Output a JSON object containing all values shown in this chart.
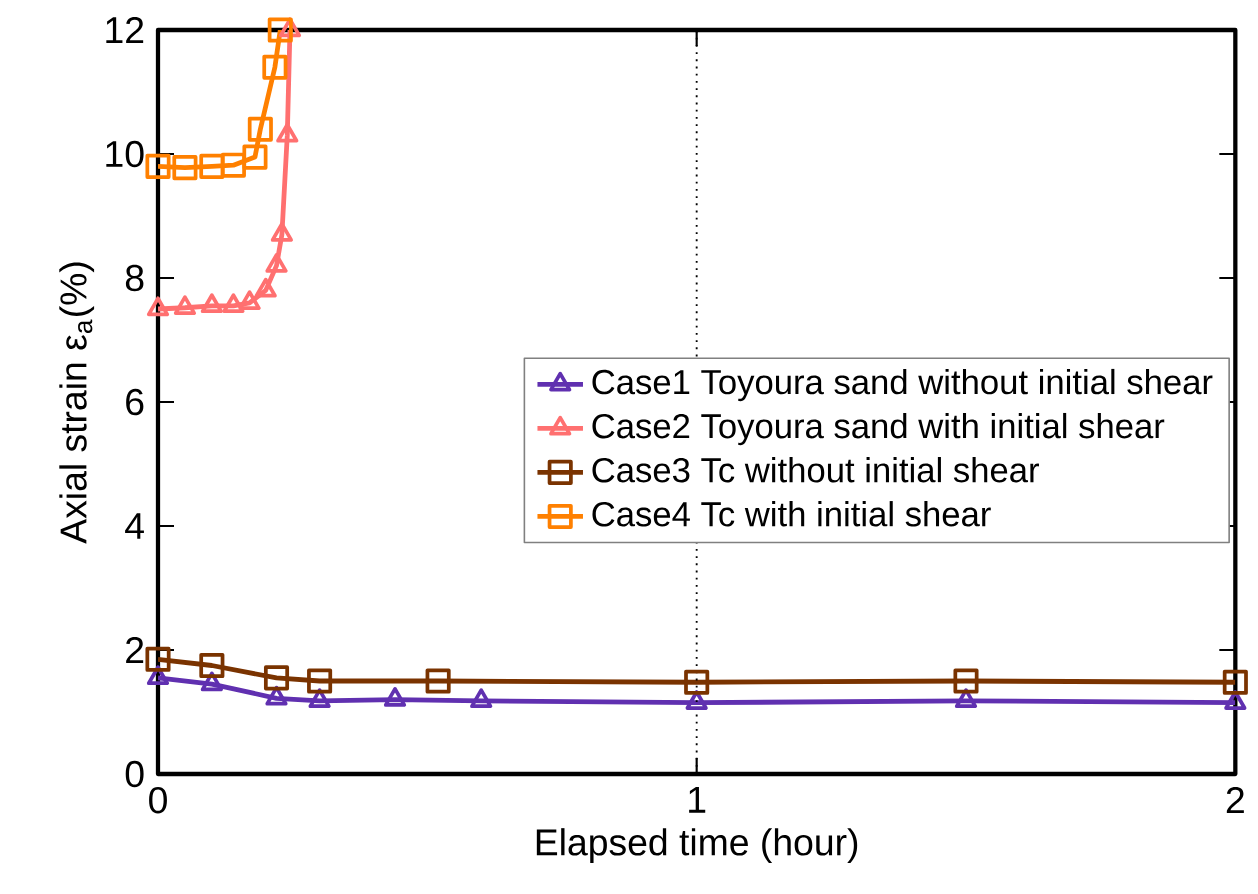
{
  "chart_data": {
    "type": "line",
    "xlabel": "Elapsed time (hour)",
    "ylabel": "Axial strain ε$_{a}$(%)",
    "xlim": [
      0,
      2
    ],
    "xticks": [
      0,
      1,
      2
    ],
    "ylim": [
      0,
      12
    ],
    "yticks": [
      0,
      2,
      4,
      6,
      8,
      10,
      12
    ],
    "grid": false,
    "legend": "right",
    "ref_lines": [
      {
        "axis": "x",
        "value": 1,
        "line_style": "dotted",
        "color": "#000000"
      }
    ],
    "series": [
      {
        "name": "Case1 Toyoura sand without initial shear",
        "color": "#6030b0",
        "marker": "triangle",
        "x": [
          0,
          0.1,
          0.22,
          0.3,
          0.44,
          0.6,
          1,
          1.5,
          2
        ],
        "values": [
          1.55,
          1.45,
          1.22,
          1.18,
          1.2,
          1.18,
          1.15,
          1.18,
          1.15
        ]
      },
      {
        "name": "Case2 Toyoura sand with initial shear",
        "color": "#ff7070",
        "marker": "triangle",
        "x": [
          0,
          0.05,
          0.1,
          0.14,
          0.17,
          0.2,
          0.22,
          0.23,
          0.24,
          0.245
        ],
        "values": [
          7.5,
          7.52,
          7.55,
          7.55,
          7.6,
          7.8,
          8.2,
          8.7,
          10.3,
          12
        ]
      },
      {
        "name": "Case3 Tc without initial shear",
        "color": "#7a3300",
        "marker": "square",
        "x": [
          0,
          0.1,
          0.22,
          0.3,
          0.52,
          1,
          1.5,
          2
        ],
        "values": [
          1.85,
          1.75,
          1.55,
          1.5,
          1.5,
          1.48,
          1.5,
          1.48
        ]
      },
      {
        "name": "Case4 Tc with initial shear",
        "color": "#ff8000",
        "marker": "square",
        "x": [
          0,
          0.05,
          0.1,
          0.14,
          0.18,
          0.19,
          0.217,
          0.227
        ],
        "values": [
          9.8,
          9.78,
          9.8,
          9.82,
          9.95,
          10.4,
          11.4,
          12
        ]
      }
    ]
  }
}
